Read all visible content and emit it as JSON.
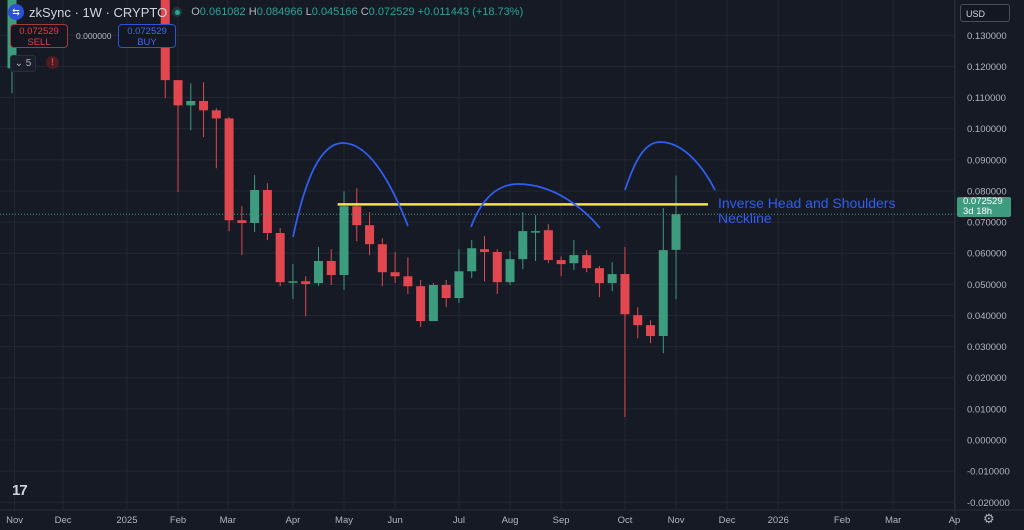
{
  "header": {
    "symbol": "zkSync · 1W · CRYPTO",
    "o_label": "O",
    "o": "0.061082",
    "h_label": "H",
    "h": "0.084966",
    "l_label": "L",
    "l": "0.045166",
    "c_label": "C",
    "c": "0.072529",
    "change": "+0.011443 (+18.73%)"
  },
  "trade": {
    "sell_price": "0.072529",
    "sell_label": "SELL",
    "spread": "0.000000",
    "buy_price": "0.072529",
    "buy_label": "BUY"
  },
  "indicators": {
    "count": "5",
    "warn": "!"
  },
  "currency": "USD",
  "last_price": {
    "value": "0.072529",
    "countdown": "3d 18h"
  },
  "annotation": {
    "line1": "Inverse Head and Shoulders",
    "line2": "Neckline"
  },
  "logo_text": "17",
  "colors": {
    "up": "#3d9b7e",
    "down": "#e2474f",
    "neckline": "#f2e34a",
    "arc": "#2f5ef0",
    "grid": "#232733",
    "bg": "#161a25"
  },
  "chart_data": {
    "type": "candlestick",
    "title": "zkSync · 1W · CRYPTO",
    "ylim": [
      -0.02,
      0.14
    ],
    "yticks": [
      "0.130000",
      "0.120000",
      "0.110000",
      "0.100000",
      "0.090000",
      "0.080000",
      "0.070000",
      "0.060000",
      "0.050000",
      "0.040000",
      "0.030000",
      "0.020000",
      "0.010000",
      "0.000000",
      "-0.010000",
      "-0.020000"
    ],
    "ytick_values": [
      0.13,
      0.12,
      0.11,
      0.1,
      0.09,
      0.08,
      0.07,
      0.06,
      0.05,
      0.04,
      0.03,
      0.02,
      0.01,
      0,
      -0.01,
      -0.02
    ],
    "xticks": [
      {
        "label": "Nov",
        "week": 0.2
      },
      {
        "label": "Dec",
        "week": 4
      },
      {
        "label": "2025",
        "week": 9
      },
      {
        "label": "Feb",
        "week": 13
      },
      {
        "label": "Mar",
        "week": 16.9
      },
      {
        "label": "Apr",
        "week": 22
      },
      {
        "label": "May",
        "week": 26
      },
      {
        "label": "Jun",
        "week": 30
      },
      {
        "label": "Jul",
        "week": 35
      },
      {
        "label": "Aug",
        "week": 39
      },
      {
        "label": "Sep",
        "week": 43
      },
      {
        "label": "Oct",
        "week": 48
      },
      {
        "label": "Nov",
        "week": 52
      },
      {
        "label": "Dec",
        "week": 56
      },
      {
        "label": "2026",
        "week": 60
      },
      {
        "label": "Feb",
        "week": 65
      },
      {
        "label": "Mar",
        "week": 69
      },
      {
        "label": "Ap",
        "week": 73.8
      }
    ],
    "candles": [
      [
        0.1194,
        0.15,
        0.1114,
        0.145
      ],
      null,
      null,
      null,
      null,
      null,
      null,
      null,
      null,
      null,
      null,
      null,
      [
        0.15,
        0.15,
        0.1098,
        0.1156
      ],
      [
        0.1156,
        0.1156,
        0.0796,
        0.1075
      ],
      [
        0.1075,
        0.1146,
        0.0995,
        0.1089
      ],
      [
        0.1089,
        0.1149,
        0.0973,
        0.1059
      ],
      [
        0.1059,
        0.1066,
        0.0873,
        0.1033
      ],
      [
        0.1033,
        0.1037,
        0.0671,
        0.0706
      ],
      [
        0.0706,
        0.0751,
        0.0594,
        0.0697
      ],
      [
        0.0697,
        0.0851,
        0.0668,
        0.0803
      ],
      [
        0.0803,
        0.0825,
        0.0642,
        0.0665
      ],
      [
        0.0665,
        0.0681,
        0.0494,
        0.0507
      ],
      [
        0.0507,
        0.0565,
        0.0453,
        0.051
      ],
      [
        0.051,
        0.0526,
        0.0398,
        0.0501
      ],
      [
        0.0504,
        0.062,
        0.0495,
        0.0575
      ],
      [
        0.0575,
        0.0613,
        0.0498,
        0.053
      ],
      [
        0.053,
        0.0799,
        0.0482,
        0.0751
      ],
      [
        0.0751,
        0.0809,
        0.0639,
        0.069
      ],
      [
        0.069,
        0.0732,
        0.0594,
        0.0629
      ],
      [
        0.0629,
        0.0648,
        0.0494,
        0.0539
      ],
      [
        0.0539,
        0.0604,
        0.0504,
        0.0526
      ],
      [
        0.0526,
        0.0587,
        0.0469,
        0.0494
      ],
      [
        0.0494,
        0.0514,
        0.0363,
        0.0382
      ],
      [
        0.0382,
        0.0504,
        0.0382,
        0.0498
      ],
      [
        0.0498,
        0.0514,
        0.0427,
        0.0456
      ],
      [
        0.0456,
        0.0613,
        0.044,
        0.0542
      ],
      [
        0.0542,
        0.0642,
        0.052,
        0.0616
      ],
      [
        0.0613,
        0.0655,
        0.051,
        0.0604
      ],
      [
        0.0604,
        0.0613,
        0.0469,
        0.0507
      ],
      [
        0.0507,
        0.0607,
        0.0498,
        0.0581
      ],
      [
        0.0581,
        0.0732,
        0.0549,
        0.0671
      ],
      [
        0.0668,
        0.0722,
        0.0575,
        0.0671
      ],
      [
        0.0674,
        0.0693,
        0.0568,
        0.0578
      ],
      [
        0.0578,
        0.059,
        0.0526,
        0.0565
      ],
      [
        0.0568,
        0.0642,
        0.0546,
        0.0594
      ],
      [
        0.0594,
        0.061,
        0.0539,
        0.0552
      ],
      [
        0.0552,
        0.0559,
        0.0459,
        0.0504
      ],
      [
        0.0504,
        0.0571,
        0.0478,
        0.0533
      ],
      [
        0.0533,
        0.062,
        0.0074,
        0.0404
      ],
      [
        0.0401,
        0.0427,
        0.0327,
        0.0369
      ],
      [
        0.0369,
        0.0385,
        0.0311,
        0.0334
      ],
      [
        0.0334,
        0.0745,
        0.0279,
        0.061
      ],
      [
        0.061082,
        0.084966,
        0.045166,
        0.072529
      ]
    ],
    "last_price": 0.072529,
    "neckline": {
      "price": 0.0757,
      "from_week": 25.5,
      "to_week": 54.5,
      "label": "Inverse Head and Shoulders Neckline"
    }
  }
}
